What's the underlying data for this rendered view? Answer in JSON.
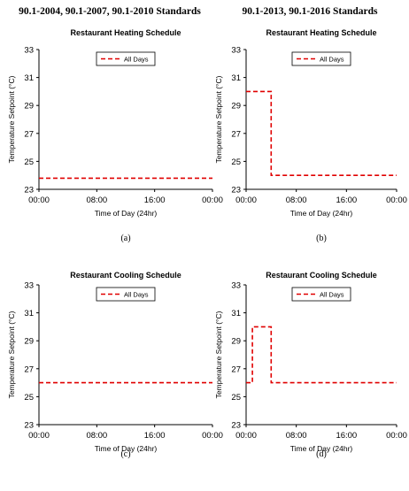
{
  "headers": {
    "left": "90.1-2004, 90.1-2007, 90.1-2010 Standards",
    "right": "90.1-2013, 90.1-2016 Standards"
  },
  "colors": {
    "series": "#e00000",
    "axis": "#000000"
  },
  "chart_data": [
    {
      "type": "line",
      "label": "(a)",
      "title": "Restaurant Heating Schedule",
      "xlabel": "Time of Day (24hr)",
      "ylabel": "Temperature Setpoint (°C)",
      "xlim": [
        0,
        24
      ],
      "ylim": [
        23,
        33
      ],
      "xticks": [
        "00:00",
        "08:00",
        "16:00",
        "00:00"
      ],
      "yticks": [
        "23",
        "25",
        "27",
        "29",
        "31",
        "33"
      ],
      "legend": "top-center",
      "grid": false,
      "series": [
        {
          "name": "All Days",
          "points": [
            [
              0,
              23.8
            ],
            [
              24,
              23.8
            ]
          ]
        }
      ]
    },
    {
      "type": "line",
      "label": "(b)",
      "title": "Restaurant Heating Schedule",
      "xlabel": "Time of Day (24hr)",
      "ylabel": "Temperature Setpoint (°C)",
      "xlim": [
        0,
        24
      ],
      "ylim": [
        23,
        33
      ],
      "xticks": [
        "00:00",
        "08:00",
        "16:00",
        "00:00"
      ],
      "yticks": [
        "23",
        "25",
        "27",
        "29",
        "31",
        "33"
      ],
      "legend": "top-center",
      "grid": false,
      "series": [
        {
          "name": "All Days",
          "points": [
            [
              0,
              30
            ],
            [
              4,
              30
            ],
            [
              4,
              24
            ],
            [
              24,
              24
            ]
          ]
        }
      ]
    },
    {
      "type": "line",
      "label": "(c)",
      "title": "Restaurant Cooling Schedule",
      "xlabel": "Time of Day (24hr)",
      "ylabel": "Temperature Setpoint (°C)",
      "xlim": [
        0,
        24
      ],
      "ylim": [
        23,
        33
      ],
      "xticks": [
        "00:00",
        "08:00",
        "16:00",
        "00:00"
      ],
      "yticks": [
        "23",
        "25",
        "27",
        "29",
        "31",
        "33"
      ],
      "legend": "top-center",
      "grid": false,
      "series": [
        {
          "name": "All Days",
          "points": [
            [
              0,
              26
            ],
            [
              24,
              26
            ]
          ]
        }
      ]
    },
    {
      "type": "line",
      "label": "(d)",
      "title": "Restaurant Cooling Schedule",
      "xlabel": "Time of Day (24hr)",
      "ylabel": "Temperature Setpoint (°C)",
      "xlim": [
        0,
        24
      ],
      "ylim": [
        23,
        33
      ],
      "xticks": [
        "00:00",
        "08:00",
        "16:00",
        "00:00"
      ],
      "yticks": [
        "23",
        "25",
        "27",
        "29",
        "31",
        "33"
      ],
      "legend": "top-center",
      "grid": false,
      "series": [
        {
          "name": "All Days",
          "points": [
            [
              0,
              26
            ],
            [
              1,
              26
            ],
            [
              1,
              30
            ],
            [
              4,
              30
            ],
            [
              4,
              26
            ],
            [
              24,
              26
            ]
          ]
        }
      ]
    }
  ]
}
